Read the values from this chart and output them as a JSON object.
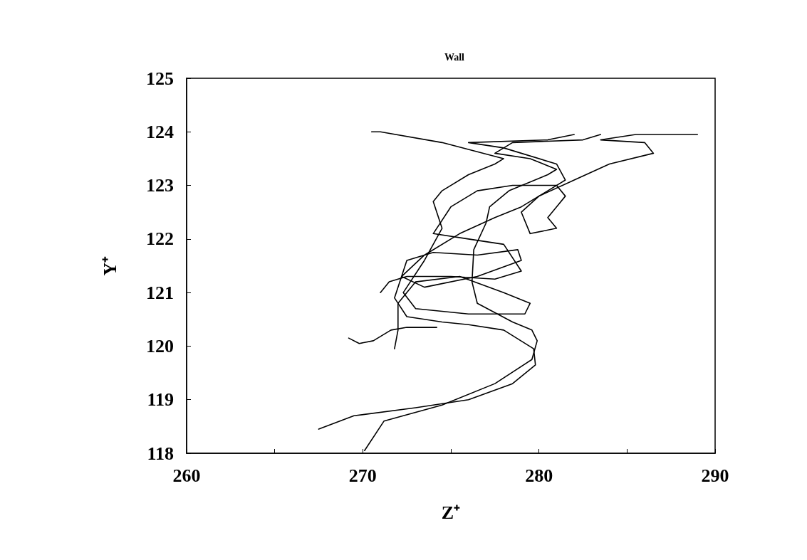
{
  "chart_data": {
    "type": "line",
    "title": "Wall",
    "xlabel": "Z⁺",
    "ylabel": "Y⁺",
    "xlim": [
      260,
      290
    ],
    "ylim": [
      118,
      125
    ],
    "xticks": [
      260,
      {
        "value": 265,
        "label": null
      },
      270,
      {
        "value": 275,
        "label": null
      },
      280,
      {
        "value": 285,
        "label": null
      },
      290
    ],
    "yticks": [
      118,
      119,
      120,
      121,
      122,
      123,
      124,
      125
    ],
    "grid": false,
    "marker": "none",
    "line_style": "solid",
    "series": [
      {
        "color": "#000000",
        "x": [
          270.1,
          271.2,
          274.5,
          277.5,
          279.6,
          279.9,
          279.6,
          278.5,
          276.5,
          276.2,
          276.3,
          277.0,
          277.2,
          278.3,
          280.5,
          281.0,
          279.5,
          277.5,
          278.5,
          282.5,
          283.5
        ],
        "values": [
          118.05,
          118.6,
          118.9,
          119.3,
          119.75,
          120.1,
          120.3,
          120.45,
          120.8,
          121.2,
          121.8,
          122.3,
          122.6,
          122.9,
          123.2,
          123.3,
          123.5,
          123.6,
          123.8,
          123.85,
          123.95
        ]
      },
      {
        "color": "#000000",
        "x": [
          267.5,
          269.5,
          273.0,
          276.0,
          278.5,
          279.8,
          279.7,
          278.0,
          276.0,
          274.5,
          272.5,
          271.8,
          272.5,
          274.0,
          276.5,
          278.8,
          279.0,
          276.5,
          273.5,
          272.2,
          273.5,
          275.5,
          277.5,
          279.0,
          280.5,
          281.5,
          281.0,
          278.0,
          276.0,
          280.5,
          282.0
        ],
        "values": [
          118.45,
          118.7,
          118.85,
          119.0,
          119.3,
          119.65,
          119.95,
          120.3,
          120.4,
          120.45,
          120.55,
          120.9,
          121.6,
          121.75,
          121.7,
          121.8,
          121.6,
          121.3,
          121.1,
          121.3,
          121.7,
          122.1,
          122.4,
          122.6,
          122.9,
          123.1,
          123.4,
          123.7,
          123.8,
          123.85,
          123.95
        ]
      },
      {
        "color": "#000000",
        "x": [
          269.2,
          269.8,
          270.6,
          271.6,
          272.5,
          274.2
        ],
        "values": [
          120.15,
          120.05,
          120.1,
          120.3,
          120.35,
          120.35
        ]
      },
      {
        "color": "#000000",
        "x": [
          271.8,
          272.0,
          272.0,
          273.0,
          275.5,
          278.0,
          279.5,
          279.2,
          276.0,
          273.0,
          272.3,
          273.5,
          274.5,
          274.0,
          274.5,
          276.0,
          277.5,
          278.0,
          274.5,
          271.0,
          270.5
        ],
        "values": [
          119.95,
          120.3,
          120.8,
          121.2,
          121.3,
          121.0,
          120.8,
          120.6,
          120.6,
          120.7,
          121.0,
          121.6,
          122.2,
          122.7,
          122.9,
          123.2,
          123.4,
          123.5,
          123.8,
          124.0,
          124.0
        ]
      },
      {
        "color": "#000000",
        "x": [
          271.0,
          271.5,
          272.5,
          275.0,
          277.5,
          279.0,
          278.0,
          276.0,
          274.0,
          275.0,
          276.5,
          278.5,
          281.0,
          281.5,
          281.0,
          280.5,
          281.0,
          279.5,
          279.0,
          280.0,
          282.0,
          284.0,
          286.5,
          286.0,
          283.5,
          285.5,
          289.0
        ],
        "values": [
          121.0,
          121.2,
          121.3,
          121.3,
          121.25,
          121.4,
          121.9,
          122.0,
          122.1,
          122.6,
          122.9,
          123.0,
          123.0,
          122.8,
          122.6,
          122.4,
          122.2,
          122.1,
          122.5,
          122.8,
          123.1,
          123.4,
          123.6,
          123.8,
          123.85,
          123.95,
          123.95
        ]
      }
    ]
  }
}
